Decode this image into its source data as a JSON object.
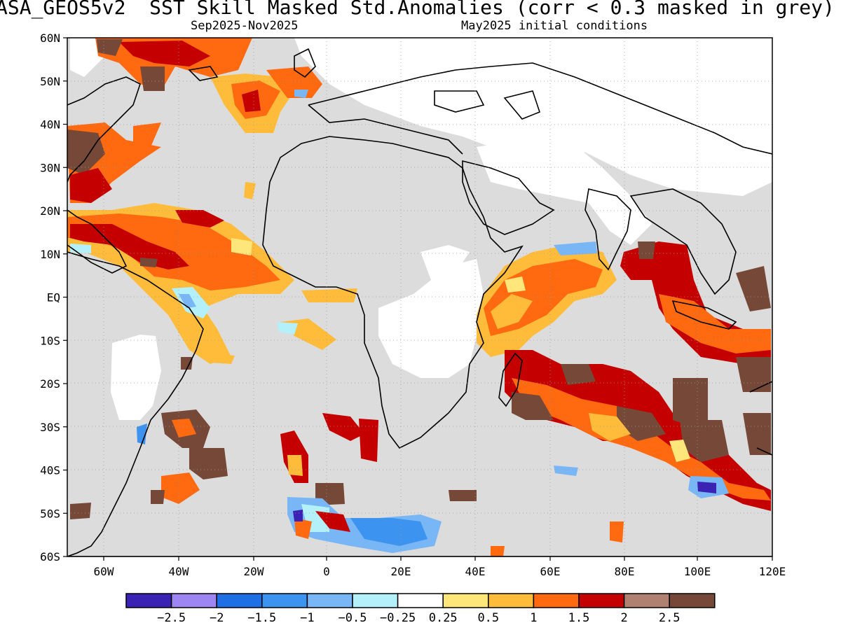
{
  "header": {
    "title": "ASA_GEOS5v2  SST Skill Masked Std.Anomalies (corr < 0.3 masked in grey)",
    "period": "Sep2025-Nov2025",
    "init": "May2025 initial conditions"
  },
  "map": {
    "lat_labels": [
      "60N",
      "50N",
      "40N",
      "30N",
      "20N",
      "10N",
      "EQ",
      "10S",
      "20S",
      "30S",
      "40S",
      "50S",
      "60S"
    ],
    "lon_labels": [
      "60W",
      "40W",
      "20W",
      "0",
      "20E",
      "40E",
      "60E",
      "80E",
      "100E",
      "120E"
    ],
    "mask_color": "#dcdcdc",
    "land_color": "#ffffff"
  },
  "colorbar": {
    "colors": [
      "#3a22b4",
      "#9d86f2",
      "#1e6ee6",
      "#3c93f0",
      "#78b6f6",
      "#b4f0fa",
      "#ffffff",
      "#ffe67a",
      "#ffbc3a",
      "#ff6a10",
      "#c40000",
      "#b08070",
      "#764838"
    ],
    "labels": [
      "-2.5",
      "-2",
      "-1.5",
      "-1",
      "-0.5",
      "-0.25",
      "0.25",
      "0.5",
      "1",
      "1.5",
      "2",
      "2.5"
    ]
  },
  "icons": {
    "coastline": "coastline-outline"
  }
}
